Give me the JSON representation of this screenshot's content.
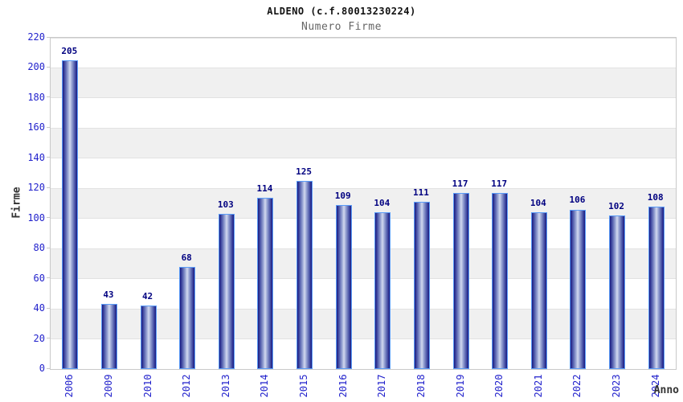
{
  "header": {
    "title": "ALDENO (c.f.80013230224)",
    "subtitle": "Numero Firme"
  },
  "chart_data": {
    "type": "bar",
    "title": "ALDENO (c.f.80013230224)",
    "subtitle": "Numero Firme",
    "categories": [
      "2006",
      "2009",
      "2010",
      "2012",
      "2013",
      "2014",
      "2015",
      "2016",
      "2017",
      "2018",
      "2019",
      "2020",
      "2021",
      "2022",
      "2023",
      "2024"
    ],
    "values": [
      205,
      43,
      42,
      68,
      103,
      114,
      125,
      109,
      104,
      111,
      117,
      117,
      104,
      106,
      102,
      108
    ],
    "xlabel": "Anno",
    "ylabel": "Firme",
    "ylim": [
      0,
      220
    ],
    "ytick_step": 20,
    "yticks": [
      0,
      20,
      40,
      60,
      80,
      100,
      120,
      140,
      160,
      180,
      200,
      220
    ],
    "grid": "alternating horizontal bands, gray on 20-40/60-80/100-120/140-160/180-200",
    "legend": "none",
    "bar_value_labels": true,
    "colors": {
      "bar_dark": "#191980",
      "bar_mid": "#9ca8d6",
      "bar_light": "#d2d9ef",
      "bar_border": "#5a9cf8",
      "tick_label": "#2222cc",
      "value_label": "#000080",
      "band_gray": "#f0f0f0",
      "band_white": "#ffffff",
      "gridline": "#e2e2e2",
      "plot_border": "#c9c9c9",
      "title": "#111111",
      "subtitle": "#666666",
      "axis_title": "#333333"
    }
  }
}
